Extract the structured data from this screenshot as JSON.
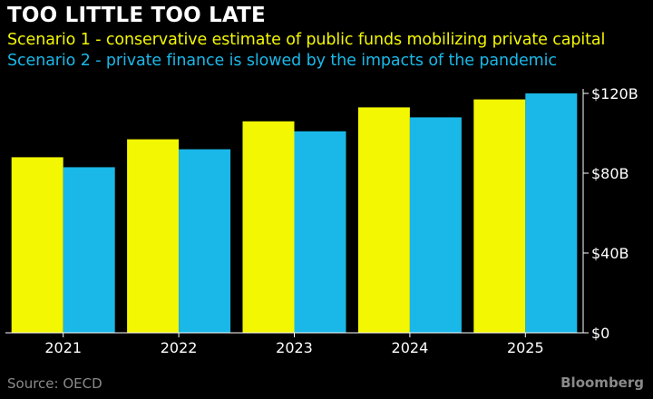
{
  "chart_data": {
    "type": "bar",
    "title": "TOO LITTLE TOO LATE",
    "categories": [
      "2021",
      "2022",
      "2023",
      "2024",
      "2025"
    ],
    "series": [
      {
        "name": "Scenario 1 - conservative estimate of public funds mobilizing private capital",
        "color": "#f3f702",
        "values": [
          88,
          97,
          106,
          113,
          117
        ]
      },
      {
        "name": "Scenario 2 - private finance is slowed by the impacts of the pandemic",
        "color": "#1ab8e8",
        "values": [
          83,
          92,
          101,
          108,
          120
        ]
      }
    ],
    "yticks": [
      {
        "value": 0,
        "label": "$0"
      },
      {
        "value": 40,
        "label": "$40B"
      },
      {
        "value": 80,
        "label": "$80B"
      },
      {
        "value": 120,
        "label": "$120B"
      }
    ],
    "ylim": [
      0,
      120
    ],
    "xlabel": "",
    "ylabel": "",
    "grid": false,
    "legend_position": "top-left",
    "axis_color": "#ffffff"
  },
  "footer": {
    "source": "Source: OECD",
    "brand": "Bloomberg"
  }
}
